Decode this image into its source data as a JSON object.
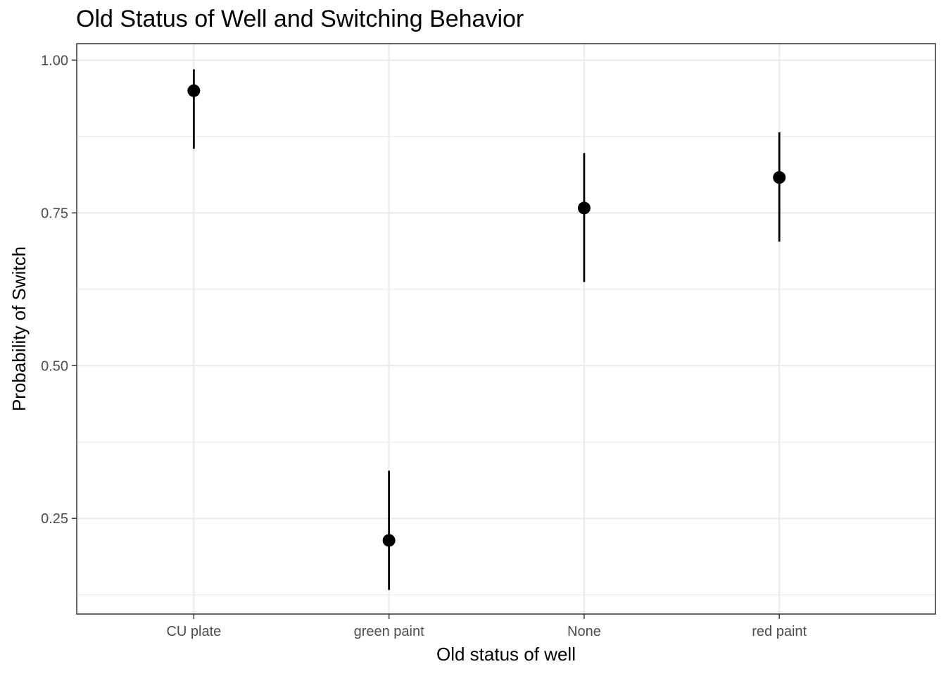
{
  "chart_data": {
    "type": "scatter",
    "title": "Old Status of Well and Switching Behavior",
    "xlabel": "Old status of well",
    "ylabel": "Probability of Switch",
    "categories": [
      "CU plate",
      "green paint",
      "None",
      "red paint"
    ],
    "series": [
      {
        "values": [
          0.95,
          0.214,
          0.758,
          0.808
        ],
        "lower": [
          0.855,
          0.133,
          0.637,
          0.703
        ],
        "upper": [
          0.985,
          0.328,
          0.848,
          0.882
        ]
      }
    ],
    "ylim": [
      0.0935,
      1.027
    ],
    "yticks": [
      0.25,
      0.5,
      0.75,
      1.0
    ],
    "ytick_labels": [
      "0.25",
      "0.50",
      "0.75",
      "1.00"
    ],
    "grid": true,
    "colors": {
      "point": "#000000",
      "errorbar": "#000000",
      "grid": "#ebebeb",
      "panel_border": "#333333"
    }
  }
}
